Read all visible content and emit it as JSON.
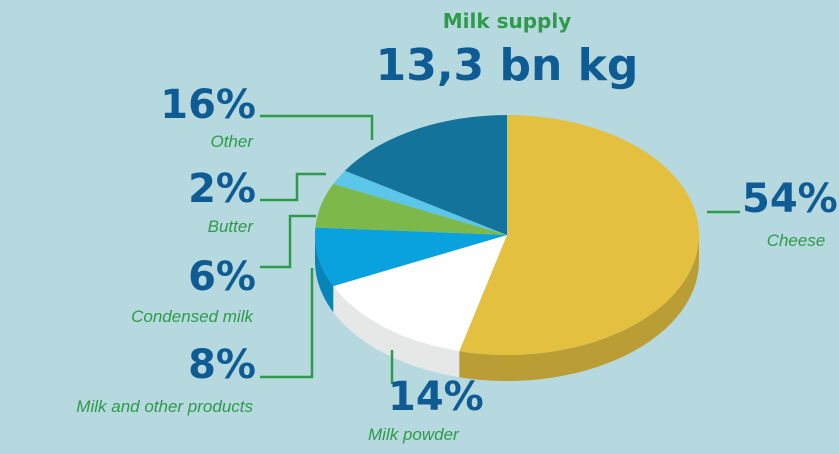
{
  "chart_data": {
    "type": "pie",
    "title": "Milk supply",
    "subtitle": "13,3 bn kg",
    "categories": [
      "Cheese",
      "Milk powder",
      "Milk and other products",
      "Condensed milk",
      "Butter",
      "Other"
    ],
    "values": [
      54,
      14,
      8,
      6,
      2,
      16
    ],
    "value_labels": [
      "54%",
      "14%",
      "8%",
      "6%",
      "2%",
      "16%"
    ],
    "colors": [
      "#e3c03f",
      "#ffffff",
      "#0aa2de",
      "#7cb84a",
      "#5cc6ea",
      "#14739b"
    ]
  }
}
